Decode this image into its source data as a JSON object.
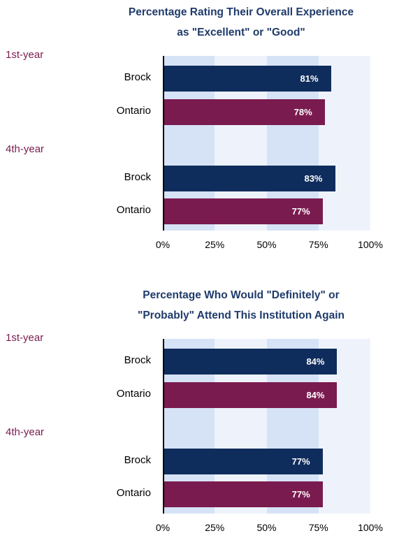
{
  "colors": {
    "brock": "#0f2d5c",
    "ontario": "#7a1b4f",
    "band_dark": "#d6e3f6",
    "band_light": "#eef3fb",
    "title": "#1f3b6b"
  },
  "chart_data": [
    {
      "type": "bar",
      "orientation": "horizontal",
      "title": "Percentage Rating Their Overall Experience as \"Excellent\" or \"Good\"",
      "title_lines": [
        "Percentage Rating Their Overall Experience",
        "as \"Excellent\" or \"Good\""
      ],
      "xlim": [
        0,
        100
      ],
      "ticks": [
        "0%",
        "25%",
        "50%",
        "75%",
        "100%"
      ],
      "groups": [
        {
          "label": "1st-year",
          "bars": [
            {
              "category": "Brock",
              "value": 81,
              "label": "81%"
            },
            {
              "category": "Ontario",
              "value": 78,
              "label": "78%"
            }
          ]
        },
        {
          "label": "4th-year",
          "bars": [
            {
              "category": "Brock",
              "value": 83,
              "label": "83%"
            },
            {
              "category": "Ontario",
              "value": 77,
              "label": "77%"
            }
          ]
        }
      ]
    },
    {
      "type": "bar",
      "orientation": "horizontal",
      "title": "Percentage Who Would \"Definitely\" or \"Probably\" Attend This Institution Again",
      "title_lines": [
        "Percentage Who Would \"Definitely\" or",
        "\"Probably\" Attend This Institution Again"
      ],
      "xlim": [
        0,
        100
      ],
      "ticks": [
        "0%",
        "25%",
        "50%",
        "75%",
        "100%"
      ],
      "groups": [
        {
          "label": "1st-year",
          "bars": [
            {
              "category": "Brock",
              "value": 84,
              "label": "84%"
            },
            {
              "category": "Ontario",
              "value": 84,
              "label": "84%"
            }
          ]
        },
        {
          "label": "4th-year",
          "bars": [
            {
              "category": "Brock",
              "value": 77,
              "label": "77%"
            },
            {
              "category": "Ontario",
              "value": 77,
              "label": "77%"
            }
          ]
        }
      ]
    }
  ]
}
